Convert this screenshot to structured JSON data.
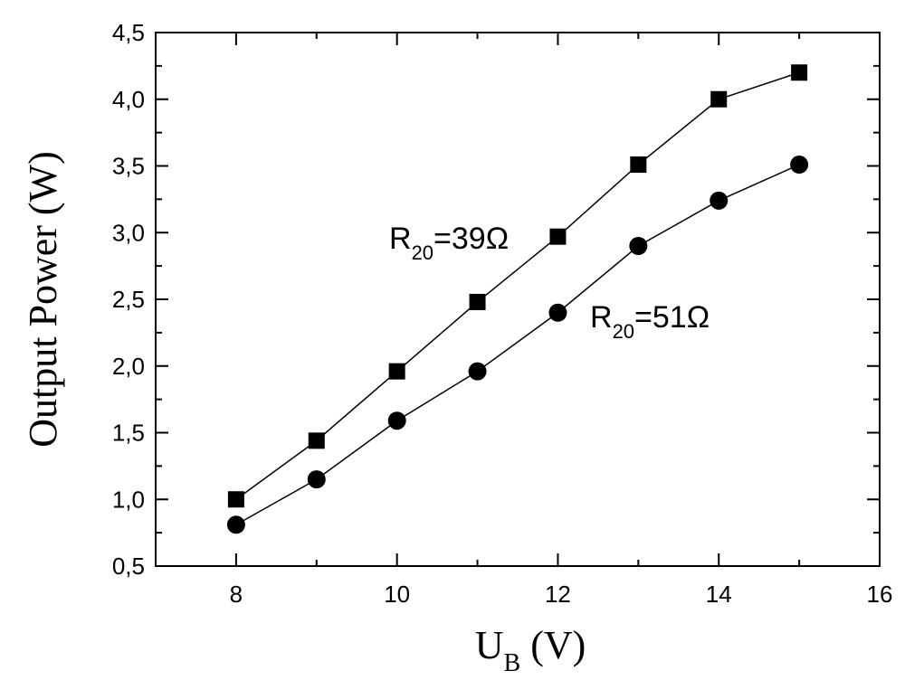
{
  "chart_data": {
    "type": "line",
    "title": "",
    "xlabel": "U",
    "xlabel_sub": "B",
    "xlabel_unit": " (V)",
    "ylabel": "Output Power (W)",
    "xlim": [
      7,
      16
    ],
    "ylim": [
      0.5,
      4.5
    ],
    "xticks": [
      8,
      10,
      12,
      14,
      16
    ],
    "xtick_labels": [
      "8",
      "10",
      "12",
      "14",
      "16"
    ],
    "yticks": [
      0.5,
      1.0,
      1.5,
      2.0,
      2.5,
      3.0,
      3.5,
      4.0,
      4.5
    ],
    "ytick_labels": [
      "0,5",
      "1,0",
      "1,5",
      "2,0",
      "2,5",
      "3,0",
      "3,5",
      "4,0",
      "4,5"
    ],
    "grid": false,
    "line_color": "#000000",
    "series": [
      {
        "marker": "square",
        "annotation": {
          "main": "R",
          "sub": "20",
          "rest": "=39Ω"
        },
        "x": [
          8,
          9,
          10,
          11,
          12,
          13,
          14,
          15
        ],
        "y": [
          1.0,
          1.44,
          1.96,
          2.48,
          2.97,
          3.51,
          4.0,
          4.2
        ]
      },
      {
        "marker": "circle",
        "annotation": {
          "main": "R",
          "sub": "20",
          "rest": "=51Ω"
        },
        "x": [
          8,
          9,
          10,
          11,
          12,
          13,
          14,
          15
        ],
        "y": [
          0.81,
          1.15,
          1.59,
          1.96,
          2.4,
          2.9,
          3.24,
          3.51
        ]
      }
    ]
  }
}
